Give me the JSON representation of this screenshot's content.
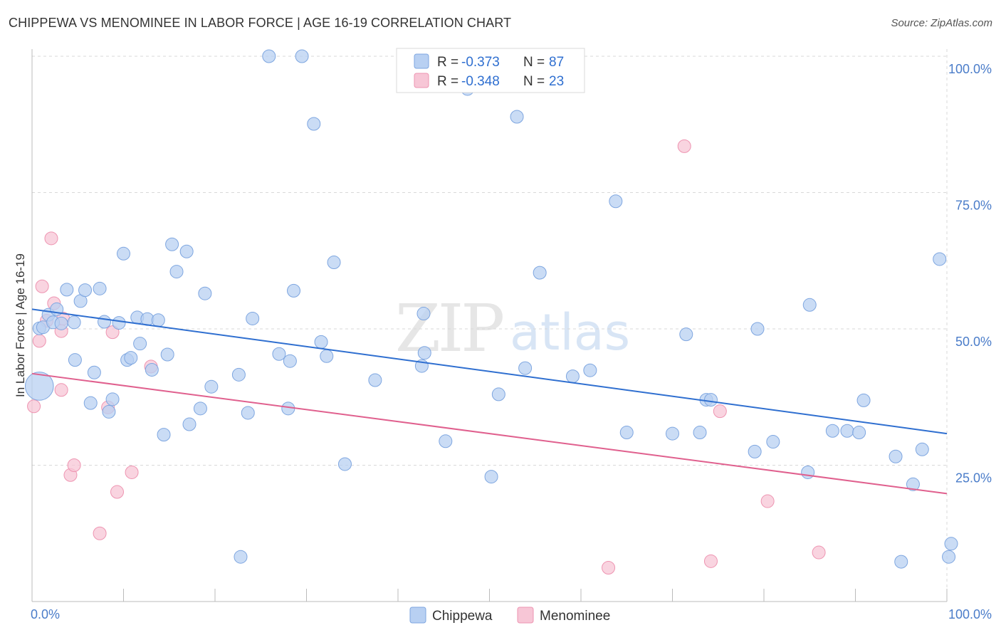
{
  "title": "CHIPPEWA VS MENOMINEE IN LABOR FORCE | AGE 16-19 CORRELATION CHART",
  "source": "Source: ZipAtlas.com",
  "watermark": {
    "zip": "ZIP",
    "atlas": "atlas"
  },
  "colors": {
    "chippewa_fill": "#b8d0f2",
    "chippewa_stroke": "#7ea6e0",
    "chippewa_line": "#2f6fd0",
    "menominee_fill": "#f7c6d6",
    "menominee_stroke": "#ee94b1",
    "menominee_line": "#e0608e",
    "tick_label": "#4a7cc9",
    "grid": "#d8d8d8"
  },
  "legend": {
    "rows": [
      {
        "r_label": "R =",
        "r_value": "-0.373",
        "n_label": "N =",
        "n_value": "87",
        "series": "Chippewa"
      },
      {
        "r_label": "R =",
        "r_value": "-0.348",
        "n_label": "N =",
        "n_value": "23",
        "series": "Menominee"
      }
    ],
    "bottom": [
      "Chippewa",
      "Menominee"
    ]
  },
  "chart_data": {
    "type": "scatter",
    "title": "CHIPPEWA VS MENOMINEE IN LABOR FORCE | AGE 16-19 CORRELATION CHART",
    "xlabel": "",
    "ylabel": "In Labor Force | Age 16-19",
    "xlim": [
      0,
      100
    ],
    "ylim": [
      0,
      100
    ],
    "x_tick_labels": [
      "0.0%",
      "100.0%"
    ],
    "y_tick_labels": [
      "100.0%",
      "75.0%",
      "50.0%",
      "25.0%"
    ],
    "y_ticks": [
      100,
      75,
      50,
      25
    ],
    "grid": true,
    "legend_position": "top-center",
    "series": [
      {
        "name": "Chippewa",
        "trend": {
          "x": [
            0,
            100
          ],
          "y": [
            53.6,
            30.8
          ]
        },
        "points": [
          [
            0.8,
            39.5,
            2.2
          ],
          [
            0.8,
            50.1,
            1
          ],
          [
            1.2,
            50.3,
            1
          ],
          [
            1.8,
            52.6,
            1
          ],
          [
            2.3,
            51.2,
            1
          ],
          [
            2.7,
            53.6,
            1
          ],
          [
            3.2,
            51.0,
            1
          ],
          [
            3.8,
            57.2,
            1
          ],
          [
            4.6,
            51.2,
            1
          ],
          [
            4.7,
            44.3,
            1
          ],
          [
            5.3,
            55.1,
            1
          ],
          [
            5.8,
            57.1,
            1
          ],
          [
            6.4,
            36.4,
            1
          ],
          [
            6.8,
            42.0,
            1
          ],
          [
            7.4,
            57.4,
            1
          ],
          [
            7.9,
            51.3,
            1
          ],
          [
            8.4,
            34.8,
            1
          ],
          [
            8.8,
            37.1,
            1
          ],
          [
            9.5,
            51.1,
            1
          ],
          [
            10.0,
            63.8,
            1
          ],
          [
            10.4,
            44.3,
            1
          ],
          [
            10.8,
            44.7,
            1
          ],
          [
            11.5,
            52.1,
            1
          ],
          [
            11.8,
            47.3,
            1
          ],
          [
            12.6,
            51.8,
            1
          ],
          [
            13.1,
            42.5,
            1
          ],
          [
            13.8,
            51.6,
            1
          ],
          [
            14.4,
            30.6,
            1
          ],
          [
            14.8,
            45.3,
            1
          ],
          [
            15.3,
            65.5,
            1
          ],
          [
            15.8,
            60.5,
            1
          ],
          [
            16.9,
            64.2,
            1
          ],
          [
            17.2,
            32.5,
            1
          ],
          [
            18.4,
            35.4,
            1
          ],
          [
            18.9,
            56.5,
            1
          ],
          [
            19.6,
            39.4,
            1
          ],
          [
            22.6,
            41.6,
            1
          ],
          [
            22.8,
            8.2,
            1
          ],
          [
            23.6,
            34.6,
            1
          ],
          [
            24.1,
            51.9,
            1
          ],
          [
            25.9,
            100.0,
            1
          ],
          [
            27.0,
            45.4,
            1
          ],
          [
            28.0,
            35.4,
            1
          ],
          [
            28.2,
            44.1,
            1
          ],
          [
            28.6,
            57.0,
            1
          ],
          [
            29.5,
            100.0,
            1
          ],
          [
            30.8,
            87.6,
            1
          ],
          [
            31.6,
            47.6,
            1
          ],
          [
            32.2,
            45.0,
            1
          ],
          [
            33.0,
            62.2,
            1
          ],
          [
            34.2,
            25.2,
            1
          ],
          [
            37.5,
            40.6,
            1
          ],
          [
            42.6,
            43.2,
            1
          ],
          [
            42.8,
            52.8,
            1
          ],
          [
            42.9,
            45.6,
            1
          ],
          [
            45.2,
            29.4,
            1
          ],
          [
            47.6,
            94.0,
            1
          ],
          [
            50.2,
            22.9,
            1
          ],
          [
            51.0,
            38.0,
            1
          ],
          [
            53.0,
            88.9,
            1
          ],
          [
            53.9,
            42.8,
            1
          ],
          [
            55.5,
            60.3,
            1
          ],
          [
            59.1,
            41.3,
            1
          ],
          [
            61.0,
            42.4,
            1
          ],
          [
            63.8,
            73.4,
            1
          ],
          [
            65.0,
            31.0,
            1
          ],
          [
            70.0,
            30.8,
            1
          ],
          [
            71.5,
            49.0,
            1
          ],
          [
            73.0,
            31.0,
            1
          ],
          [
            73.7,
            37.0,
            1
          ],
          [
            74.2,
            37.0,
            1
          ],
          [
            79.0,
            27.5,
            1
          ],
          [
            79.3,
            50.0,
            1
          ],
          [
            81.0,
            29.3,
            1
          ],
          [
            84.8,
            23.7,
            1
          ],
          [
            85.0,
            54.4,
            1
          ],
          [
            87.5,
            31.3,
            1
          ],
          [
            89.1,
            31.3,
            1
          ],
          [
            90.4,
            31.0,
            1
          ],
          [
            90.9,
            36.9,
            1
          ],
          [
            94.4,
            26.6,
            1
          ],
          [
            95.0,
            7.3,
            1
          ],
          [
            96.3,
            21.5,
            1
          ],
          [
            97.3,
            27.9,
            1
          ],
          [
            99.2,
            62.8,
            1
          ],
          [
            100.2,
            8.2,
            1
          ],
          [
            101.4,
            10.6,
            1
          ]
        ]
      },
      {
        "name": "Menominee",
        "trend": {
          "x": [
            0,
            100
          ],
          "y": [
            41.8,
            19.8
          ]
        },
        "points": [
          [
            0.2,
            35.8,
            1
          ],
          [
            0.8,
            47.8,
            1
          ],
          [
            1.1,
            57.8,
            1
          ],
          [
            1.6,
            51.5,
            1
          ],
          [
            2.1,
            66.6,
            1
          ],
          [
            2.4,
            54.7,
            1
          ],
          [
            3.2,
            49.6,
            1
          ],
          [
            3.2,
            38.8,
            1
          ],
          [
            3.4,
            51.9,
            1
          ],
          [
            4.2,
            23.2,
            1
          ],
          [
            4.6,
            25.0,
            1
          ],
          [
            7.4,
            12.5,
            1
          ],
          [
            8.3,
            35.6,
            1
          ],
          [
            8.8,
            49.4,
            1
          ],
          [
            9.3,
            20.1,
            1
          ],
          [
            10.9,
            23.7,
            1
          ],
          [
            13.0,
            43.1,
            1
          ],
          [
            63.0,
            6.2,
            1
          ],
          [
            71.3,
            83.5,
            1
          ],
          [
            74.2,
            7.4,
            1
          ],
          [
            75.2,
            34.9,
            1
          ],
          [
            80.4,
            18.4,
            1
          ],
          [
            86.0,
            9.0,
            1
          ]
        ]
      }
    ]
  }
}
